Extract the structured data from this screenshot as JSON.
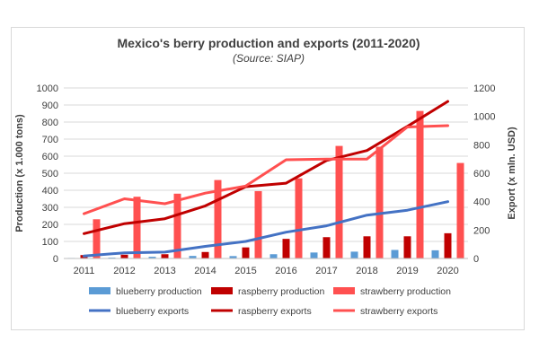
{
  "chart_data": {
    "type": "bar",
    "title": "Mexico's berry production and exports (2011-2020)",
    "subtitle": "(Source: SIAP)",
    "categories": [
      "2011",
      "2012",
      "2013",
      "2014",
      "2015",
      "2016",
      "2017",
      "2018",
      "2019",
      "2020"
    ],
    "ylabel": "Production (x 1.000 tons)",
    "y2label": "Export (x mln. USD)",
    "ylim": [
      0,
      1000
    ],
    "y2lim": [
      0,
      1200
    ],
    "yticks": [
      "0",
      "100",
      "200",
      "300",
      "400",
      "500",
      "600",
      "700",
      "800",
      "900",
      "1000"
    ],
    "y2ticks": [
      "0",
      "200",
      "400",
      "600",
      "800",
      "1000",
      "1200"
    ],
    "grid": true,
    "legend_position": "bottom",
    "bar_series": [
      {
        "name": "blueberry production",
        "color": "#5b9bd5",
        "values": [
          3,
          5,
          10,
          15,
          14,
          25,
          35,
          40,
          50,
          48
        ]
      },
      {
        "name": "raspberry production",
        "color": "#c00000",
        "values": [
          20,
          22,
          25,
          38,
          65,
          115,
          125,
          130,
          130,
          148
        ]
      },
      {
        "name": "strawberry production",
        "color": "#ff5050",
        "values": [
          230,
          362,
          380,
          460,
          395,
          470,
          660,
          655,
          865,
          560
        ]
      }
    ],
    "line_series": [
      {
        "name": "blueberry exports",
        "color": "#4472c4",
        "values": [
          17,
          40,
          45,
          85,
          120,
          185,
          230,
          305,
          340,
          400
        ]
      },
      {
        "name": "raspberry exports",
        "color": "#c00000",
        "values": [
          175,
          245,
          280,
          370,
          505,
          530,
          690,
          760,
          930,
          1105
        ]
      },
      {
        "name": "strawberry exports",
        "color": "#ff5050",
        "values": [
          315,
          420,
          385,
          460,
          510,
          695,
          700,
          700,
          925,
          935
        ]
      }
    ]
  }
}
